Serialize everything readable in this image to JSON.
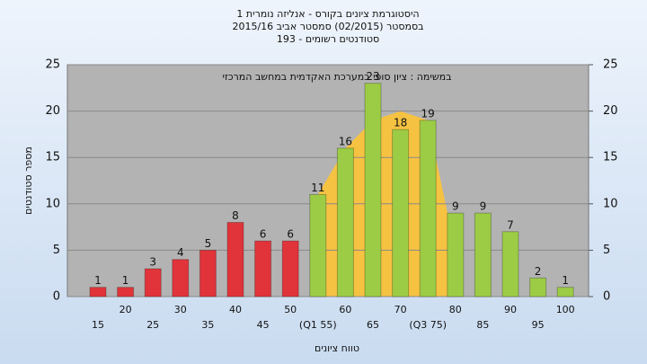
{
  "chart_data": {
    "type": "bar",
    "title": "היסטוגרמת ציונים בקורס - אנליזה נומרית 1",
    "subtitle": "בסמסטר (02/2015) סמסטר אביב 2015/16",
    "subtitle2": "סטודנטים רשומים - 193",
    "annotation": "במשימה : ציון סופי במערכת האקדמית במחשב המרכזי",
    "x_label": "טווח ציונים",
    "y_label": "מספר סטודנטים",
    "categories": [
      "15",
      "20",
      "25",
      "30",
      "35",
      "40",
      "45",
      "50",
      "(Q1 55)",
      "60",
      "65",
      "70",
      "(Q3 75)",
      "80",
      "85",
      "90",
      "95",
      "100"
    ],
    "values": [
      1,
      1,
      3,
      4,
      5,
      8,
      6,
      6,
      11,
      16,
      23,
      18,
      19,
      9,
      9,
      7,
      2,
      1
    ],
    "colors": [
      "#e0343a",
      "#e0343a",
      "#e0343a",
      "#e0343a",
      "#e0343a",
      "#e0343a",
      "#e0343a",
      "#e0343a",
      "#9ccc45",
      "#9ccc45",
      "#9ccc45",
      "#9ccc45",
      "#9ccc45",
      "#9ccc45",
      "#9ccc45",
      "#9ccc45",
      "#9ccc45",
      "#9ccc45"
    ],
    "area": {
      "color": "#f6c242",
      "values": [
        null,
        null,
        null,
        null,
        null,
        null,
        null,
        null,
        11,
        16,
        19,
        20,
        19,
        5,
        null,
        null,
        null,
        null
      ]
    },
    "ylim": [
      0,
      25
    ],
    "yticks": [
      0,
      5,
      10,
      15,
      20,
      25
    ],
    "y2lim": [
      0,
      25
    ],
    "y2ticks": [
      0,
      5,
      10,
      15,
      20,
      25
    ],
    "grid": true
  }
}
